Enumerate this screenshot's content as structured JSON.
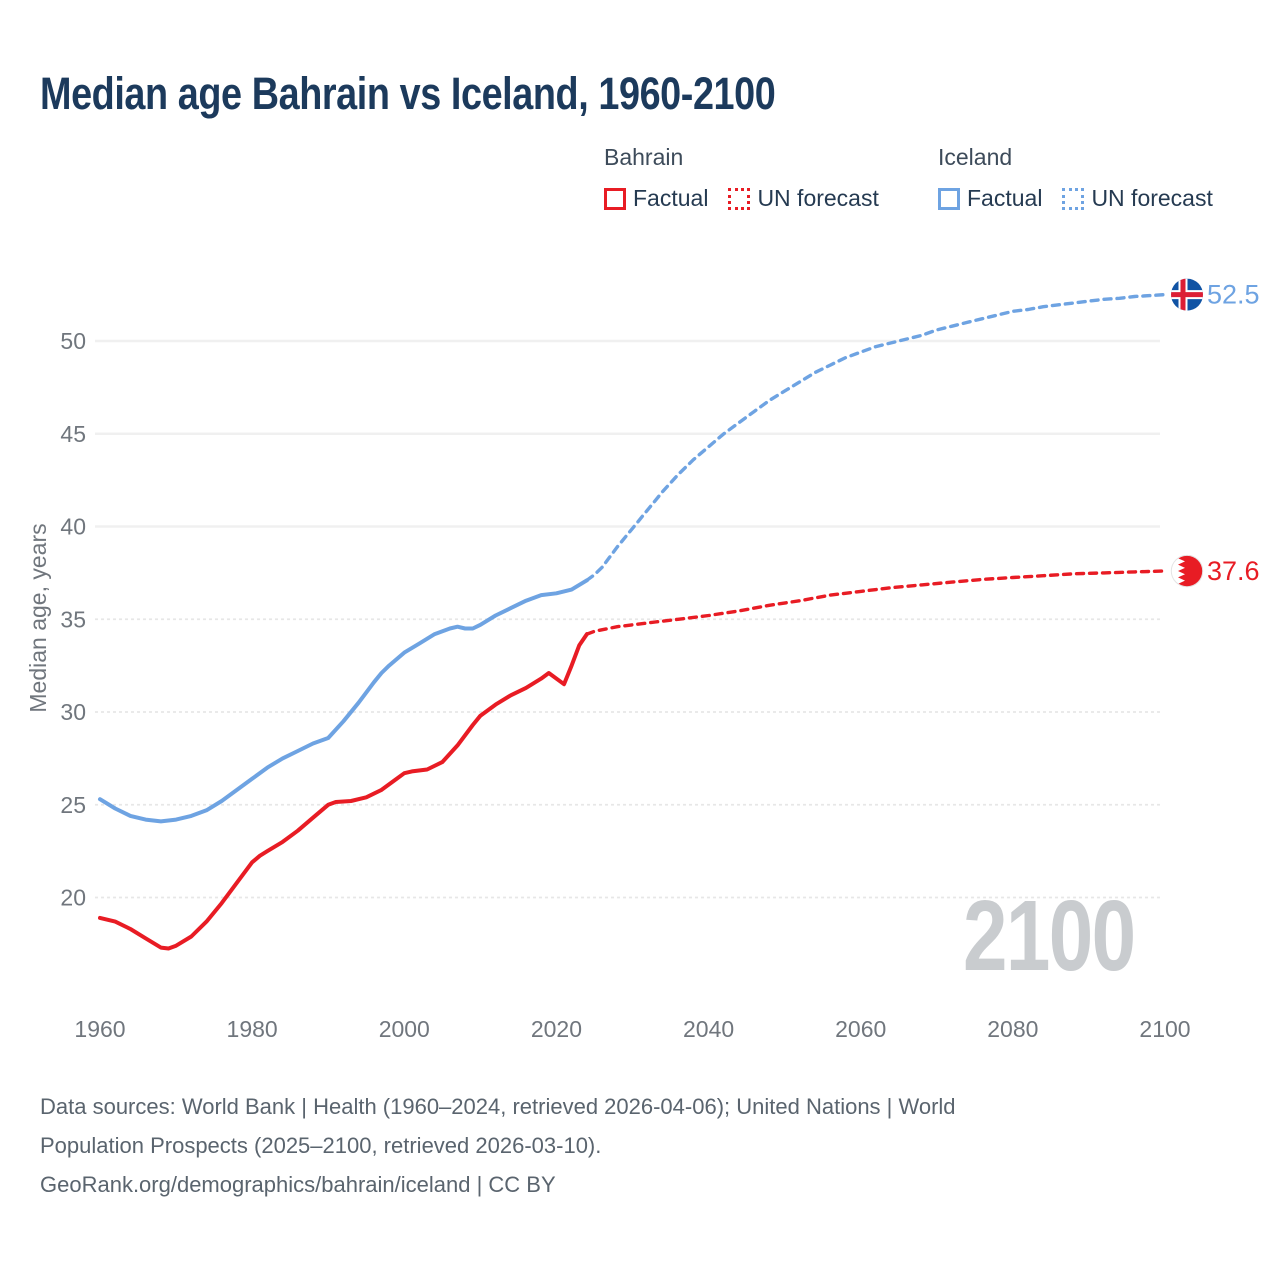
{
  "title": "Median age Bahrain vs Iceland, 1960-2100",
  "legend": {
    "groups": [
      {
        "label": "Bahrain",
        "items": [
          {
            "label": "Factual",
            "style": "solid",
            "color": "#e81c24"
          },
          {
            "label": "UN forecast",
            "style": "dotted",
            "color": "#e81c24"
          }
        ]
      },
      {
        "label": "Iceland",
        "items": [
          {
            "label": "Factual",
            "style": "solid",
            "color": "#6ea3e2"
          },
          {
            "label": "UN forecast",
            "style": "dotted",
            "color": "#6ea3e2"
          }
        ]
      }
    ]
  },
  "watermark": "2100",
  "footer": {
    "line1": "Data sources: World Bank | Health (1960–2024, retrieved 2026-04-06); United Nations | World",
    "line2": "Population Prospects (2025–2100, retrieved 2026-03-10).",
    "line3": "GeoRank.org/demographics/bahrain/iceland | CC BY"
  },
  "chart_data": {
    "type": "line",
    "title": "Median age Bahrain vs Iceland, 1960-2100",
    "xlabel": "",
    "ylabel": "Median age, years",
    "xlim": [
      1960,
      2100
    ],
    "ylim": [
      17,
      53
    ],
    "x_ticks": [
      1960,
      1980,
      2000,
      2020,
      2040,
      2060,
      2080,
      2100
    ],
    "y_ticks": [
      {
        "v": 20,
        "grid": "dashed"
      },
      {
        "v": 25,
        "grid": "dashed"
      },
      {
        "v": 30,
        "grid": "dashed"
      },
      {
        "v": 35,
        "grid": "dashed"
      },
      {
        "v": 40,
        "grid": "solid"
      },
      {
        "v": 45,
        "grid": "solid"
      },
      {
        "v": 50,
        "grid": "solid"
      }
    ],
    "legend_position": "top-right",
    "series": [
      {
        "id": "bahrain-factual",
        "name": "Bahrain Factual",
        "color": "#e81c24",
        "dash": false,
        "points": [
          [
            1960,
            18.9
          ],
          [
            1962,
            18.7
          ],
          [
            1964,
            18.3
          ],
          [
            1966,
            17.8
          ],
          [
            1968,
            17.3
          ],
          [
            1969,
            17.25
          ],
          [
            1970,
            17.4
          ],
          [
            1972,
            17.9
          ],
          [
            1974,
            18.7
          ],
          [
            1976,
            19.7
          ],
          [
            1978,
            20.8
          ],
          [
            1980,
            21.9
          ],
          [
            1981,
            22.25
          ],
          [
            1982,
            22.5
          ],
          [
            1984,
            23.0
          ],
          [
            1986,
            23.6
          ],
          [
            1988,
            24.3
          ],
          [
            1990,
            25.0
          ],
          [
            1991,
            25.15
          ],
          [
            1993,
            25.2
          ],
          [
            1995,
            25.4
          ],
          [
            1997,
            25.8
          ],
          [
            1999,
            26.4
          ],
          [
            2000,
            26.7
          ],
          [
            2001,
            26.8
          ],
          [
            2003,
            26.9
          ],
          [
            2005,
            27.3
          ],
          [
            2007,
            28.2
          ],
          [
            2009,
            29.3
          ],
          [
            2010,
            29.8
          ],
          [
            2012,
            30.4
          ],
          [
            2014,
            30.9
          ],
          [
            2016,
            31.3
          ],
          [
            2018,
            31.8
          ],
          [
            2019,
            32.1
          ],
          [
            2021,
            31.5
          ],
          [
            2022,
            32.5
          ],
          [
            2023,
            33.6
          ],
          [
            2024,
            34.2
          ]
        ]
      },
      {
        "id": "bahrain-forecast",
        "name": "Bahrain UN forecast",
        "color": "#e81c24",
        "dash": true,
        "points": [
          [
            2024,
            34.2
          ],
          [
            2025,
            34.35
          ],
          [
            2028,
            34.6
          ],
          [
            2030,
            34.7
          ],
          [
            2033,
            34.85
          ],
          [
            2036,
            35.0
          ],
          [
            2040,
            35.2
          ],
          [
            2044,
            35.45
          ],
          [
            2048,
            35.75
          ],
          [
            2052,
            36.0
          ],
          [
            2056,
            36.3
          ],
          [
            2060,
            36.5
          ],
          [
            2064,
            36.7
          ],
          [
            2068,
            36.85
          ],
          [
            2072,
            37.0
          ],
          [
            2076,
            37.15
          ],
          [
            2080,
            37.25
          ],
          [
            2084,
            37.35
          ],
          [
            2088,
            37.45
          ],
          [
            2092,
            37.5
          ],
          [
            2096,
            37.55
          ],
          [
            2100,
            37.6
          ]
        ]
      },
      {
        "id": "iceland-factual",
        "name": "Iceland Factual",
        "color": "#6ea3e2",
        "dash": false,
        "points": [
          [
            1960,
            25.3
          ],
          [
            1962,
            24.8
          ],
          [
            1964,
            24.4
          ],
          [
            1966,
            24.2
          ],
          [
            1968,
            24.1
          ],
          [
            1970,
            24.2
          ],
          [
            1972,
            24.4
          ],
          [
            1974,
            24.7
          ],
          [
            1976,
            25.2
          ],
          [
            1978,
            25.8
          ],
          [
            1980,
            26.4
          ],
          [
            1982,
            27.0
          ],
          [
            1984,
            27.5
          ],
          [
            1986,
            27.9
          ],
          [
            1988,
            28.3
          ],
          [
            1990,
            28.6
          ],
          [
            1992,
            29.5
          ],
          [
            1994,
            30.5
          ],
          [
            1996,
            31.6
          ],
          [
            1997,
            32.1
          ],
          [
            1998,
            32.5
          ],
          [
            2000,
            33.2
          ],
          [
            2002,
            33.7
          ],
          [
            2004,
            34.2
          ],
          [
            2006,
            34.5
          ],
          [
            2007,
            34.6
          ],
          [
            2008,
            34.5
          ],
          [
            2009,
            34.5
          ],
          [
            2010,
            34.7
          ],
          [
            2012,
            35.2
          ],
          [
            2014,
            35.6
          ],
          [
            2016,
            36.0
          ],
          [
            2018,
            36.3
          ],
          [
            2020,
            36.4
          ],
          [
            2022,
            36.6
          ],
          [
            2024,
            37.1
          ]
        ]
      },
      {
        "id": "iceland-forecast",
        "name": "Iceland UN forecast",
        "color": "#6ea3e2",
        "dash": true,
        "points": [
          [
            2024,
            37.1
          ],
          [
            2025,
            37.4
          ],
          [
            2026,
            37.8
          ],
          [
            2028,
            38.9
          ],
          [
            2030,
            39.9
          ],
          [
            2032,
            40.9
          ],
          [
            2034,
            41.9
          ],
          [
            2036,
            42.8
          ],
          [
            2038,
            43.6
          ],
          [
            2040,
            44.3
          ],
          [
            2042,
            45.0
          ],
          [
            2044,
            45.6
          ],
          [
            2046,
            46.2
          ],
          [
            2048,
            46.8
          ],
          [
            2050,
            47.3
          ],
          [
            2052,
            47.8
          ],
          [
            2054,
            48.3
          ],
          [
            2056,
            48.7
          ],
          [
            2058,
            49.1
          ],
          [
            2060,
            49.4
          ],
          [
            2062,
            49.7
          ],
          [
            2064,
            49.9
          ],
          [
            2066,
            50.1
          ],
          [
            2068,
            50.3
          ],
          [
            2070,
            50.6
          ],
          [
            2072,
            50.8
          ],
          [
            2074,
            51.0
          ],
          [
            2076,
            51.2
          ],
          [
            2078,
            51.4
          ],
          [
            2080,
            51.6
          ],
          [
            2082,
            51.7
          ],
          [
            2084,
            51.85
          ],
          [
            2086,
            51.95
          ],
          [
            2088,
            52.05
          ],
          [
            2090,
            52.15
          ],
          [
            2092,
            52.25
          ],
          [
            2094,
            52.3
          ],
          [
            2096,
            52.4
          ],
          [
            2098,
            52.45
          ],
          [
            2100,
            52.5
          ]
        ]
      }
    ],
    "end_labels": [
      {
        "flag": "iceland",
        "value": "52.5",
        "value_num": 52.5,
        "color": "#6ea3e2"
      },
      {
        "flag": "bahrain",
        "value": "37.6",
        "value_num": 37.6,
        "color": "#e81c24"
      }
    ],
    "flag_colors": {
      "iceland_blue": "#1053a4",
      "iceland_red": "#dc1e35",
      "bahrain_red": "#e81c24",
      "bahrain_white": "#ffffff"
    }
  }
}
